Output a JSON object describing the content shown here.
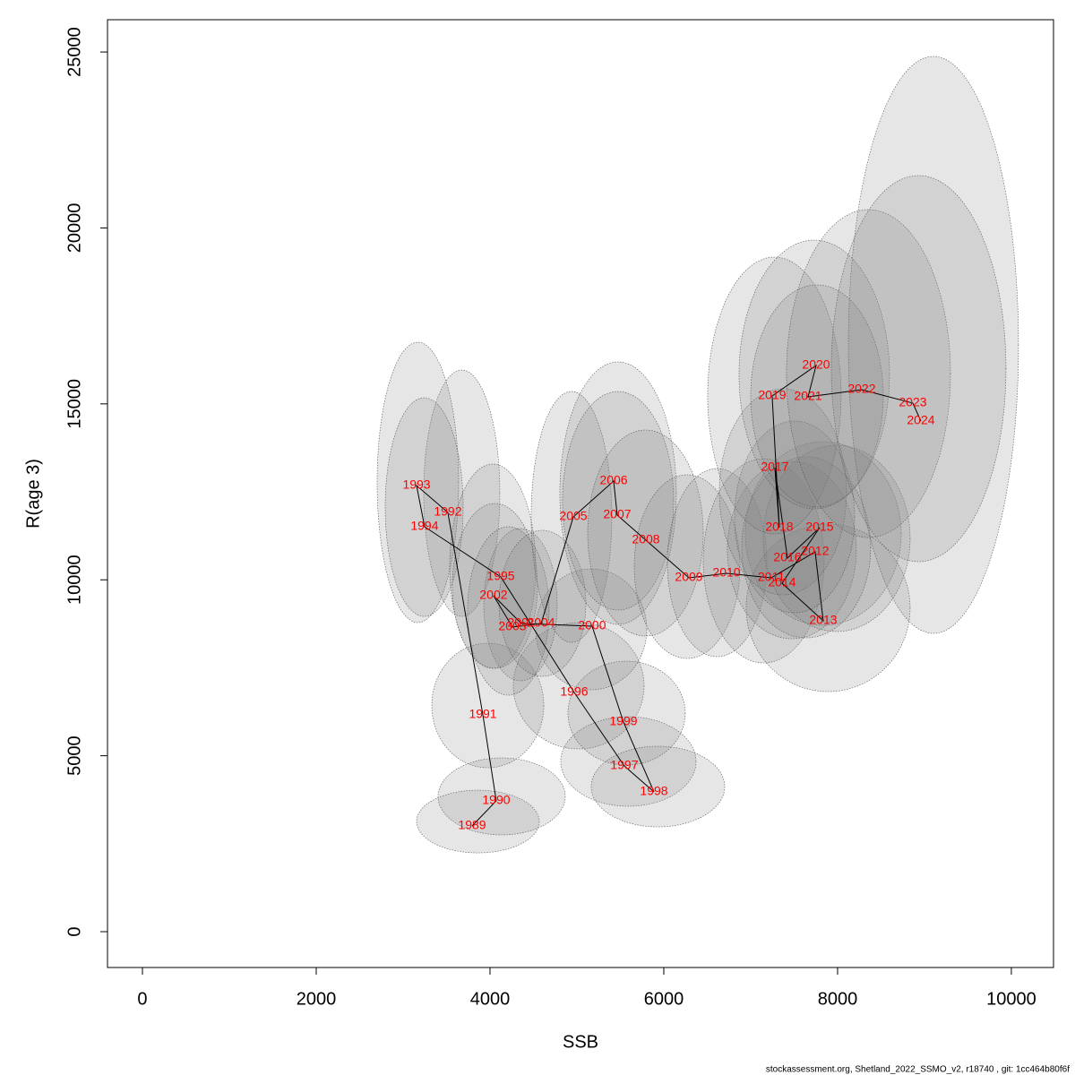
{
  "chart_data": {
    "type": "scatter",
    "x_label": "SSB",
    "y_label": "R(age 3)",
    "footer": "stockassessment.org, Shetland_2022_SSMO_v2, r18740 , git: 1cc464b80f6f",
    "labels": [
      "1989",
      "1990",
      "1991",
      "1992",
      "1993",
      "1994",
      "1995",
      "1996",
      "1997",
      "1998",
      "1999",
      "2000",
      "2001",
      "2002",
      "2003",
      "2004",
      "2005",
      "2006",
      "2007",
      "2008",
      "2009",
      "2010",
      "2011",
      "2012",
      "2013",
      "2014",
      "2015",
      "2016",
      "2017",
      "2018",
      "2019",
      "2020",
      "2021",
      "2022",
      "2023",
      "2024"
    ],
    "x": [
      3794,
      4072,
      3918,
      3515,
      3155,
      3247,
      4124,
      4969,
      5546,
      5887,
      5536,
      5175,
      4361,
      4041,
      4258,
      4588,
      4959,
      5423,
      5464,
      5794,
      6289,
      6722,
      7237,
      7742,
      7835,
      7361,
      7794,
      7423,
      7278,
      7330,
      7247,
      7753,
      7660,
      8278,
      8866,
      8959
    ],
    "y": [
      3004,
      3717,
      6161,
      11915,
      12679,
      11508,
      10082,
      6798,
      4710,
      3972,
      5958,
      8682,
      8758,
      9547,
      8656,
      8758,
      11788,
      12806,
      11839,
      11126,
      10057,
      10184,
      10057,
      10795,
      8834,
      9904,
      11482,
      10617,
      13188,
      11482,
      15225,
      16091,
      15200,
      15403,
      15021,
      14512
    ],
    "x_low": [
      3155,
      3402,
      3330,
      3237,
      2701,
      2794,
      3536,
      4268,
      4814,
      5165,
      4897,
      4526,
      3928,
      3567,
      3742,
      4103,
      4474,
      4804,
      4835,
      5124,
      5660,
      6041,
      6454,
      6938,
      6948,
      6732,
      7144,
      6897,
      6639,
      6814,
      6505,
      6866,
      7000,
      7412,
      8124,
      7928
    ],
    "x_high": [
      4567,
      4866,
      4619,
      4113,
      3639,
      3691,
      4526,
      5773,
      6371,
      6701,
      6247,
      5804,
      4773,
      4546,
      4680,
      5103,
      5402,
      6144,
      6113,
      6454,
      6876,
      7186,
      7845,
      8732,
      8835,
      8216,
      8835,
      8381,
      8103,
      8196,
      8041,
      8598,
      8526,
      9299,
      10082,
      9938
    ],
    "y_low": [
      2240,
      2750,
      4659,
      8961,
      8784,
      8961,
      7485,
      5194,
      3564,
      2979,
      4735,
      6874,
      7129,
      7485,
      6721,
      7256,
      8223,
      8733,
      9140,
      8402,
      7765,
      7816,
      7638,
      8707,
      6823,
      8325,
      8529,
      8351,
      9573,
      9064,
      11304,
      12017,
      12068,
      11202,
      8478,
      10515
    ],
    "y_high": [
      4022,
      4939,
      8198,
      15963,
      16752,
      15174,
      13290,
      8784,
      6110,
      5270,
      7689,
      10311,
      11457,
      12170,
      11508,
      11406,
      15352,
      16193,
      15352,
      14258,
      12985,
      13163,
      13443,
      13926,
      11584,
      13366,
      13825,
      13494,
      15429,
      14512,
      19171,
      19655,
      18382,
      20521,
      24874,
      21488
    ],
    "label_color": "#ff0000",
    "line_color": "#000000",
    "ellipse_color": "#808080",
    "xlim": [
      -402,
      10485
    ],
    "ylim": [
      -1018,
      25918
    ],
    "xticks": [
      0,
      2000,
      4000,
      6000,
      8000,
      10000
    ],
    "yticks": [
      0,
      5000,
      10000,
      15000,
      20000,
      25000
    ]
  }
}
